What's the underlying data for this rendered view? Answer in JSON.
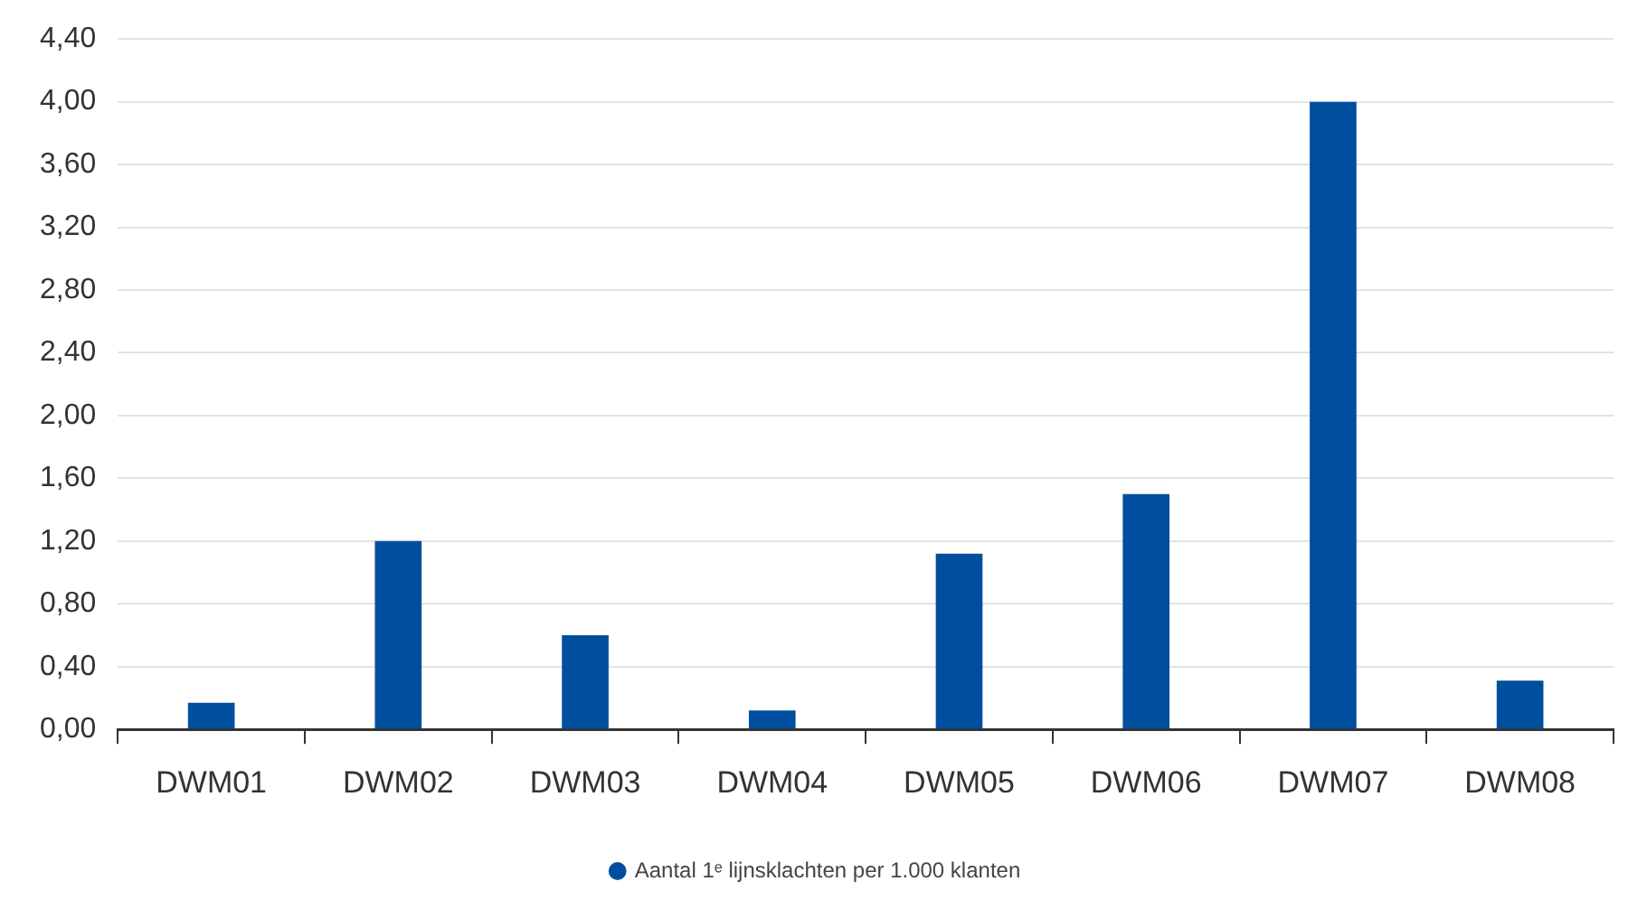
{
  "chart_data": {
    "type": "bar",
    "categories": [
      "DWM01",
      "DWM02",
      "DWM03",
      "DWM04",
      "DWM05",
      "DWM06",
      "DWM07",
      "DWM08"
    ],
    "series": [
      {
        "name": "Aantal 1ᵉ lijnsklachten per 1.000 klanten",
        "color": "#004f9f",
        "values": [
          0.17,
          1.2,
          0.6,
          0.12,
          1.12,
          1.5,
          4.0,
          0.31
        ]
      }
    ],
    "ylim": [
      0,
      4.4
    ],
    "yticks": [
      {
        "value": 0,
        "label": "0,00"
      },
      {
        "value": 0.4,
        "label": "0,40"
      },
      {
        "value": 0.8,
        "label": "0,80"
      },
      {
        "value": 1.2,
        "label": "1,20"
      },
      {
        "value": 1.6,
        "label": "1,60"
      },
      {
        "value": 2.0,
        "label": "2,00"
      },
      {
        "value": 2.4,
        "label": "2,40"
      },
      {
        "value": 2.8,
        "label": "2,80"
      },
      {
        "value": 3.2,
        "label": "3,20"
      },
      {
        "value": 3.6,
        "label": "3,60"
      },
      {
        "value": 4.0,
        "label": "4,00"
      },
      {
        "value": 4.4,
        "label": "4,40"
      }
    ],
    "grid": "y",
    "legend": "bottom"
  }
}
